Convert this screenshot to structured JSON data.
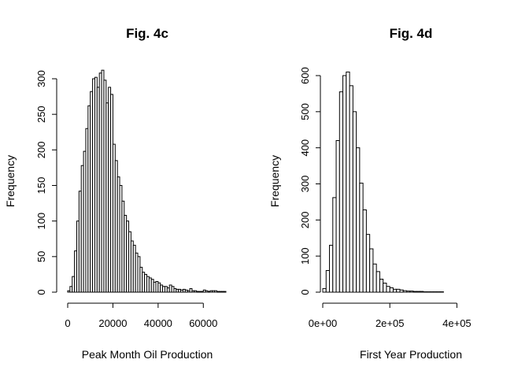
{
  "chart_data": [
    {
      "type": "bar",
      "title": "Fig. 4c",
      "xlabel": "Peak Month Oil Production",
      "ylabel": "Frequency",
      "xlim": [
        0,
        70000
      ],
      "ylim": [
        0,
        300
      ],
      "xticks": [
        0,
        20000,
        40000,
        60000
      ],
      "xtick_labels": [
        "0",
        "20000",
        "40000",
        "60000"
      ],
      "yticks": [
        0,
        50,
        100,
        150,
        200,
        250,
        300
      ],
      "ytick_labels": [
        "0",
        "50",
        "100",
        "150",
        "200",
        "250",
        "300"
      ],
      "bin_width": 1000,
      "bin_start": 0,
      "values": [
        2,
        8,
        22,
        58,
        100,
        142,
        178,
        198,
        230,
        262,
        282,
        300,
        302,
        288,
        308,
        312,
        298,
        266,
        288,
        278,
        208,
        185,
        162,
        150,
        128,
        108,
        100,
        85,
        72,
        66,
        55,
        50,
        35,
        28,
        25,
        22,
        20,
        18,
        14,
        15,
        13,
        10,
        8,
        8,
        6,
        10,
        8,
        5,
        4,
        4,
        3,
        4,
        3,
        2,
        5,
        2,
        2,
        1,
        1,
        1,
        3,
        2,
        1,
        2,
        2,
        2,
        1,
        1,
        1,
        1
      ]
    },
    {
      "type": "bar",
      "title": "Fig. 4d",
      "xlabel": "First Year Production",
      "ylabel": "Frequency",
      "xlim": [
        0,
        500000
      ],
      "ylim": [
        0,
        600
      ],
      "xticks": [
        0,
        200000,
        400000
      ],
      "xtick_labels": [
        "0e+00",
        "2e+05",
        "4e+05"
      ],
      "yticks": [
        0,
        100,
        200,
        300,
        400,
        500,
        600
      ],
      "ytick_labels": [
        "0",
        "100",
        "200",
        "300",
        "400",
        "500",
        "600"
      ],
      "bin_width": 10000,
      "bin_start": 0,
      "values": [
        10,
        60,
        130,
        262,
        420,
        555,
        600,
        610,
        572,
        500,
        400,
        302,
        228,
        160,
        120,
        78,
        57,
        36,
        25,
        16,
        12,
        8,
        8,
        6,
        4,
        3,
        3,
        2,
        2,
        2,
        1,
        1,
        1,
        1,
        1,
        1,
        0,
        0,
        0,
        0,
        0,
        0,
        0,
        0,
        0,
        0,
        0,
        0,
        0,
        0
      ]
    }
  ]
}
